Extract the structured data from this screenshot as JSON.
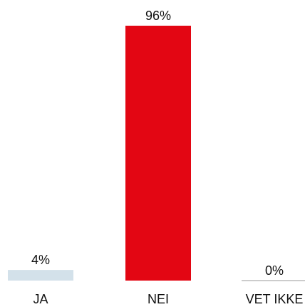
{
  "chart_data": {
    "type": "bar",
    "categories": [
      "JA",
      "NEI",
      "VET IKKE"
    ],
    "values": [
      4,
      96,
      0
    ],
    "value_labels": [
      "4%",
      "96%",
      "0%"
    ],
    "unit": "%",
    "ylim": [
      0,
      96
    ],
    "grid": false,
    "legend": "none",
    "colors": [
      "#d3e1ea",
      "#e30613",
      "#9a9a9a"
    ]
  }
}
